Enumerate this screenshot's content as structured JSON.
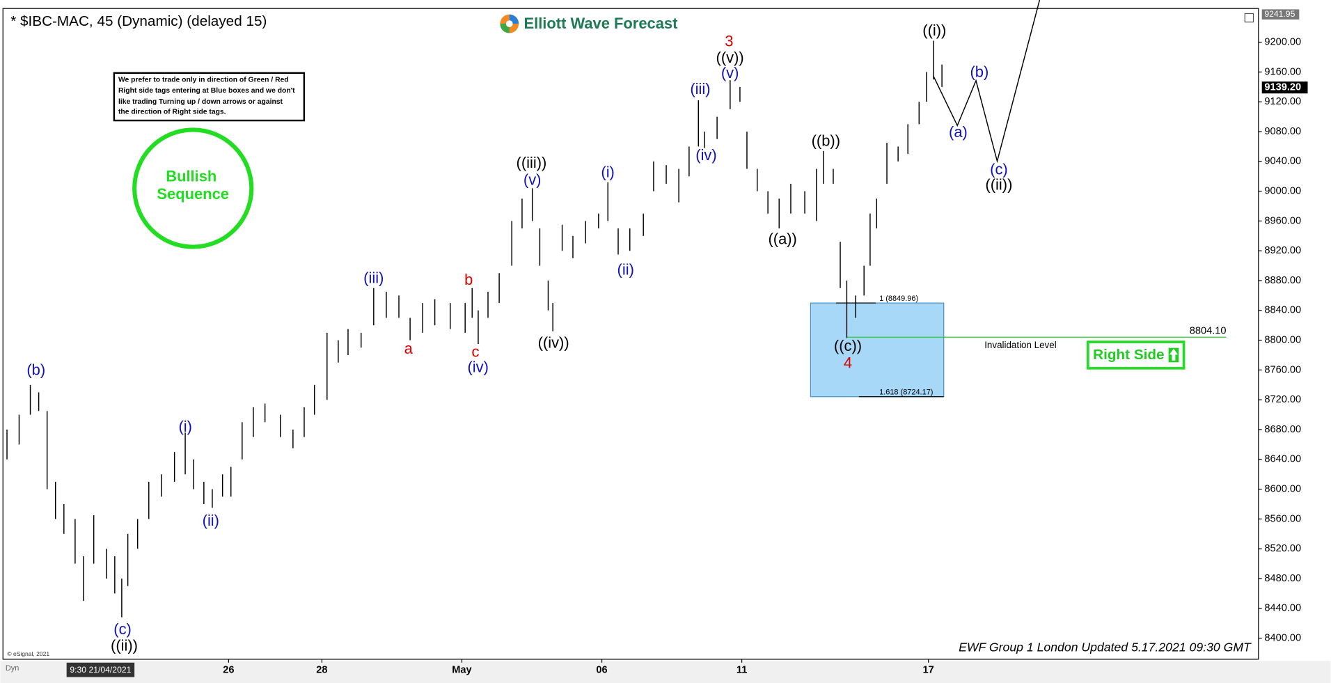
{
  "chart_data": {
    "type": "hlbar",
    "title": "* $IBC-MAC, 45 (Dynamic) (delayed 15)",
    "brand": "Elliott Wave Forecast",
    "note": [
      "We prefer to trade only in direction of Green / Red",
      "Right side tags entering at Blue boxes and we don't",
      "like trading Turning up / down arrows or against",
      "the direction of Right side tags."
    ],
    "badge": [
      "Bullish",
      "Sequence"
    ],
    "right_side_tag": "Right Side",
    "footer": "EWF Group 1 London Updated 5.17.2021 09:30 GMT",
    "copyright": "© eSignal, 2021",
    "crosshair_label": "9:30 21/04/2021",
    "mode_label": "Dyn",
    "color": "#000000",
    "x": [
      -4.75,
      -4.49,
      -4.25,
      -4.07,
      -3.89,
      -3.71,
      -3.53,
      -3.29,
      -3.11,
      -2.89,
      -2.62,
      -2.44,
      -2.29,
      -2.16,
      -1.95,
      -1.71,
      -1.44,
      -1.16,
      -0.93,
      -0.75,
      -0.53,
      -0.35,
      -0.13,
      0.05,
      0.29,
      0.53,
      0.78,
      1.11,
      1.38,
      1.62,
      1.84,
      2.11,
      2.35,
      2.56,
      2.84,
      3.11,
      3.38,
      3.65,
      3.89,
      4.16,
      4.42,
      4.75,
      5.07,
      5.22,
      5.35,
      5.56,
      5.8,
      6.07,
      6.29,
      6.51,
      6.67,
      6.85,
      6.95,
      7.15,
      7.38,
      7.65,
      7.93,
      8.13,
      8.35,
      8.6,
      8.89,
      9.11,
      9.38,
      9.65,
      9.87,
      10.07,
      10.2,
      10.47,
      10.75,
      10.96,
      11.11,
      11.33,
      11.56,
      11.8,
      12.05,
      12.35,
      12.6,
      12.75,
      12.96,
      13.11,
      13.25,
      13.44,
      13.62,
      13.75,
      13.89,
      14.11,
      14.35,
      14.56,
      14.8,
      14.96,
      15.11,
      15.29
    ],
    "high": [
      8680,
      8700,
      8740,
      8730,
      8705,
      8610,
      8580,
      8560,
      8510,
      8565,
      8520,
      8510,
      8480,
      8540,
      8560,
      8610,
      8620,
      8650,
      8676,
      8640,
      8610,
      8600,
      8620,
      8630,
      8690,
      8710,
      8715,
      8700,
      8680,
      8710,
      8740,
      8810,
      8800,
      8815,
      8810,
      8870,
      8865,
      8860,
      8830,
      8850,
      8855,
      8850,
      8850,
      8870,
      8840,
      8865,
      8890,
      8960,
      8990,
      9004,
      8950,
      8880,
      8850,
      8955,
      8940,
      8960,
      8970,
      9012,
      8950,
      8950,
      8970,
      9040,
      9035,
      9030,
      9060,
      9122,
      9080,
      9100,
      9149,
      9140,
      9080,
      9030,
      9000,
      8990,
      9010,
      9000,
      9030,
      9054,
      9030,
      8932,
      8880,
      8860,
      8900,
      8970,
      8990,
      9065,
      9060,
      9090,
      9120,
      9160,
      9202,
      9170
    ],
    "low": [
      8640,
      8660,
      8700,
      8705,
      8600,
      8560,
      8540,
      8500,
      8450,
      8500,
      8480,
      8460,
      8428,
      8470,
      8520,
      8560,
      8590,
      8610,
      8620,
      8600,
      8580,
      8575,
      8590,
      8590,
      8640,
      8670,
      8690,
      8670,
      8655,
      8670,
      8700,
      8720,
      8770,
      8780,
      8790,
      8820,
      8830,
      8830,
      8800,
      8810,
      8820,
      8815,
      8810,
      8830,
      8795,
      8830,
      8850,
      8900,
      8950,
      8960,
      8900,
      8840,
      8812,
      8920,
      8910,
      8930,
      8950,
      8960,
      8915,
      8920,
      8940,
      9000,
      9010,
      8985,
      9020,
      9060,
      9058,
      9070,
      9110,
      9120,
      9030,
      9000,
      8970,
      8950,
      8970,
      8970,
      8960,
      9010,
      9010,
      8870,
      8803,
      8830,
      8860,
      8900,
      8950,
      9010,
      9040,
      9050,
      9090,
      9120,
      9150,
      9140
    ],
    "xlim": [
      -4.8,
      22.02
    ],
    "xticks": [
      {
        "value": 0,
        "label": "26"
      },
      {
        "value": 2,
        "label": "28"
      },
      {
        "value": 5,
        "label": "May"
      },
      {
        "value": 8,
        "label": "06"
      },
      {
        "value": 11,
        "label": "11"
      },
      {
        "value": 15,
        "label": "17"
      }
    ],
    "ylim": [
      8374,
      9243
    ],
    "yticks": [
      {
        "value": 8400,
        "label": "8400.00"
      },
      {
        "value": 8440,
        "label": "8440.00"
      },
      {
        "value": 8480,
        "label": "8480.00"
      },
      {
        "value": 8520,
        "label": "8520.00"
      },
      {
        "value": 8560,
        "label": "8560.00"
      },
      {
        "value": 8600,
        "label": "8600.00"
      },
      {
        "value": 8640,
        "label": "8640.00"
      },
      {
        "value": 8680,
        "label": "8680.00"
      },
      {
        "value": 8720,
        "label": "8720.00"
      },
      {
        "value": 8760,
        "label": "8760.00"
      },
      {
        "value": 8800,
        "label": "8800.00"
      },
      {
        "value": 8840,
        "label": "8840.00"
      },
      {
        "value": 8880,
        "label": "8880.00"
      },
      {
        "value": 8920,
        "label": "8920.00"
      },
      {
        "value": 8960,
        "label": "8960.00"
      },
      {
        "value": 9000,
        "label": "9000.00"
      },
      {
        "value": 9040,
        "label": "9040.00"
      },
      {
        "value": 9080,
        "label": "9080.00"
      },
      {
        "value": 9120,
        "label": "9120.00"
      },
      {
        "value": 9160,
        "label": "9160.00"
      },
      {
        "value": 9200,
        "label": "9200.00"
      }
    ],
    "last_price": {
      "value": 9139.2,
      "label": "9139.20"
    },
    "top_price": {
      "value": 9241.95,
      "label": "9241.95"
    },
    "box": {
      "color": "#a8d8f8",
      "top": {
        "value": 8849.96,
        "label": "1 (8849.96)"
      },
      "bottom": {
        "value": 8724.17,
        "label": "1.618 (8724.17)"
      }
    },
    "invalidation": {
      "value": 8804.1,
      "label": "8804.10",
      "text": "Invalidation Level",
      "color": "#22cc22"
    },
    "annotations": [
      {
        "text": "(b)",
        "color": "#1010c0"
      },
      {
        "text": "((ii))",
        "color": "#000000"
      },
      {
        "text": "(c)",
        "color": "#1010c0"
      },
      {
        "text": "(i)",
        "color": "#1010c0"
      },
      {
        "text": "(ii)",
        "color": "#1010c0"
      },
      {
        "text": "(iii)",
        "color": "#1010c0"
      },
      {
        "text": "a",
        "color": "#dd0000"
      },
      {
        "text": "b",
        "color": "#dd0000"
      },
      {
        "text": "c",
        "color": "#dd0000"
      },
      {
        "text": "(iv)",
        "color": "#1010c0"
      },
      {
        "text": "((iii))",
        "color": "#000000"
      },
      {
        "text": "(v)",
        "color": "#1010c0"
      },
      {
        "text": "((iv))",
        "color": "#000000"
      },
      {
        "text": "(i)",
        "color": "#1010c0"
      },
      {
        "text": "(ii)",
        "color": "#1010c0"
      },
      {
        "text": "(iii)",
        "color": "#1010c0"
      },
      {
        "text": "(iv)",
        "color": "#1010c0"
      },
      {
        "text": "3",
        "color": "#dd0000"
      },
      {
        "text": "((v))",
        "color": "#000000"
      },
      {
        "text": "(v)",
        "color": "#1010c0"
      },
      {
        "text": "((a))",
        "color": "#000000"
      },
      {
        "text": "((b))",
        "color": "#000000"
      },
      {
        "text": "((c))",
        "color": "#000000"
      },
      {
        "text": "4",
        "color": "#dd0000"
      },
      {
        "text": "((i))",
        "color": "#000000"
      },
      {
        "text": "(a)",
        "color": "#1010c0"
      },
      {
        "text": "(b)",
        "color": "#1010c0"
      },
      {
        "text": "(c)",
        "color": "#1010c0"
      },
      {
        "text": "((ii))",
        "color": "#000000"
      }
    ]
  }
}
